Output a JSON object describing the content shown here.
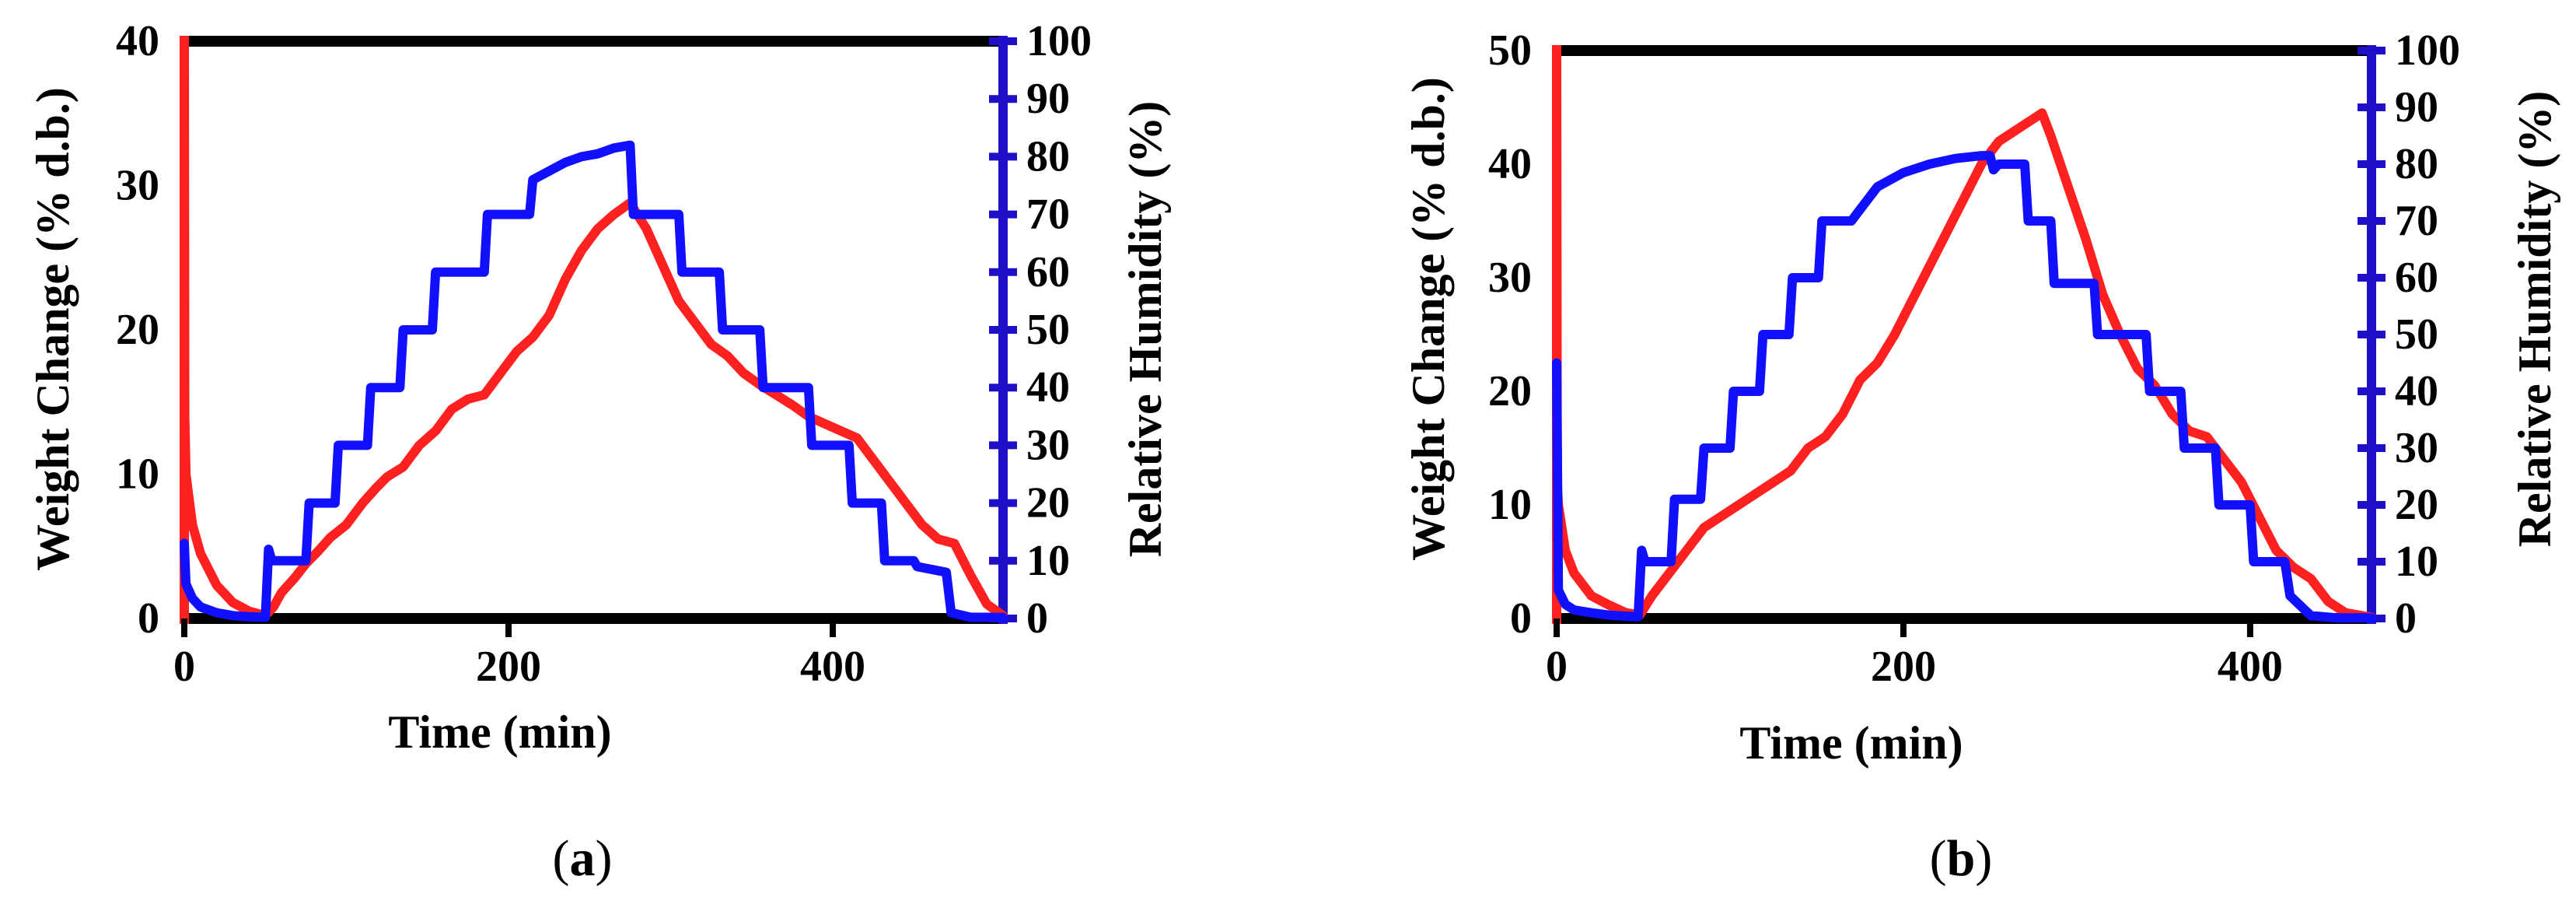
{
  "chart_data": [
    {
      "id": "a",
      "type": "line",
      "panel_label": "a",
      "xlabel": "Time (min)",
      "ylabel_left": "Weight Change (% d.b.)",
      "ylabel_right": "Relative Humidity (%)",
      "xlim": [
        0,
        505
      ],
      "xticks": [
        0,
        200,
        400
      ],
      "ylim_left": [
        0,
        40
      ],
      "yticks_left": [
        0,
        10,
        20,
        30,
        40
      ],
      "ylim_right": [
        0,
        100
      ],
      "yticks_right": [
        0,
        10,
        20,
        30,
        40,
        50,
        60,
        70,
        80,
        90,
        100
      ],
      "colors": {
        "left_axis": "#ff2020",
        "right_axis": "#1f10c8",
        "frame": "#000000"
      },
      "series": [
        {
          "name": "Weight Change",
          "axis": "left",
          "color": "#ff2020",
          "x": [
            0,
            0.3,
            1,
            5,
            10,
            20,
            30,
            40,
            50,
            55,
            60,
            68,
            75,
            82,
            90,
            100,
            110,
            118,
            125,
            135,
            145,
            155,
            165,
            175,
            185,
            195,
            205,
            215,
            225,
            235,
            245,
            255,
            265,
            275,
            285,
            295,
            305,
            315,
            325,
            335,
            345,
            355,
            365,
            375,
            385,
            395,
            405,
            415,
            425,
            435,
            445,
            455,
            465,
            475,
            485,
            495,
            505
          ],
          "y": [
            40,
            14,
            10,
            6.5,
            4.5,
            2.3,
            1.1,
            0.5,
            0.2,
            0.8,
            1.8,
            2.8,
            3.8,
            4.6,
            5.6,
            6.5,
            8.0,
            9.0,
            9.8,
            10.5,
            12.0,
            13.0,
            14.5,
            15.2,
            15.5,
            17.0,
            18.5,
            19.5,
            21.0,
            23.5,
            25.5,
            27.0,
            28.0,
            28.8,
            27.0,
            24.5,
            22.0,
            20.5,
            19.0,
            18.2,
            17.0,
            16.2,
            15.5,
            14.8,
            14.0,
            13.5,
            13.0,
            12.5,
            11.0,
            9.5,
            8.0,
            6.5,
            5.5,
            5.2,
            3.0,
            1.0,
            0.2
          ]
        },
        {
          "name": "Relative Humidity",
          "axis": "right",
          "color": "#1010ff",
          "x": [
            0,
            1,
            5,
            10,
            20,
            30,
            40,
            50,
            52,
            54,
            56,
            75,
            77,
            93,
            95,
            113,
            115,
            133,
            135,
            153,
            155,
            185,
            187,
            213,
            215,
            235,
            245,
            255,
            265,
            275,
            277,
            305,
            307,
            330,
            332,
            355,
            357,
            385,
            387,
            410,
            412,
            430,
            432,
            450,
            452,
            470,
            473,
            485,
            505
          ],
          "y": [
            13,
            6,
            3.5,
            2,
            1,
            0.5,
            0.3,
            0.2,
            12,
            10,
            10,
            10,
            20,
            20,
            30,
            30,
            40,
            40,
            50,
            50,
            60,
            60,
            70,
            70,
            76,
            79,
            80,
            80.5,
            81.5,
            82,
            70,
            70,
            60,
            60,
            50,
            50,
            40,
            40,
            30,
            30,
            20,
            20,
            10,
            10,
            9,
            8,
            1,
            0.2,
            0.2
          ]
        }
      ]
    },
    {
      "id": "b",
      "type": "line",
      "panel_label": "b",
      "xlabel": "Time (min)",
      "ylabel_left": "Weight Change (% d.b.)",
      "ylabel_right": "Relative Humidity (%)",
      "xlim": [
        0,
        470
      ],
      "xticks": [
        0,
        200,
        400
      ],
      "ylim_left": [
        0,
        50
      ],
      "yticks_left": [
        0,
        10,
        20,
        30,
        40,
        50
      ],
      "ylim_right": [
        0,
        100
      ],
      "yticks_right": [
        0,
        10,
        20,
        30,
        40,
        50,
        60,
        70,
        80,
        90,
        100
      ],
      "colors": {
        "left_axis": "#ff2020",
        "right_axis": "#1f10c8",
        "frame": "#000000"
      },
      "series": [
        {
          "name": "Weight Change",
          "axis": "left",
          "color": "#ff2020",
          "x": [
            0,
            0.3,
            1,
            5,
            10,
            20,
            30,
            40,
            48,
            55,
            65,
            75,
            85,
            95,
            105,
            115,
            125,
            135,
            145,
            155,
            165,
            175,
            185,
            195,
            205,
            215,
            225,
            235,
            245,
            255,
            265,
            270,
            275,
            280,
            285,
            295,
            305,
            315,
            325,
            335,
            345,
            355,
            365,
            375,
            385,
            395,
            405,
            415,
            425,
            435,
            445,
            455,
            470
          ],
          "y": [
            50,
            12,
            10,
            6,
            4,
            2,
            1.2,
            0.5,
            0.3,
            2.0,
            4.0,
            6.0,
            8.0,
            9.0,
            10.0,
            11.0,
            12.0,
            13.0,
            15.0,
            16.0,
            18.0,
            21.0,
            22.5,
            25.0,
            28.0,
            31.0,
            34.0,
            37.0,
            40.0,
            42.0,
            43.0,
            43.5,
            44.0,
            44.5,
            42.5,
            38.0,
            33.5,
            28.5,
            25.0,
            22.0,
            20.5,
            18.0,
            16.5,
            16.0,
            14.0,
            12.0,
            9.0,
            6.0,
            4.5,
            3.5,
            1.5,
            0.5,
            0.1
          ]
        },
        {
          "name": "Relative Humidity",
          "axis": "right",
          "color": "#1010ff",
          "x": [
            0,
            1,
            5,
            10,
            20,
            30,
            40,
            47,
            49,
            51,
            66,
            68,
            83,
            85,
            100,
            102,
            117,
            119,
            134,
            136,
            151,
            153,
            170,
            175,
            185,
            200,
            215,
            230,
            245,
            250,
            252,
            255,
            270,
            272,
            285,
            287,
            310,
            312,
            340,
            342,
            360,
            362,
            380,
            382,
            400,
            402,
            420,
            423,
            435,
            450,
            470
          ],
          "y": [
            45,
            5,
            2.5,
            1.5,
            1,
            0.6,
            0.4,
            0.3,
            12,
            10,
            10,
            21,
            21,
            30,
            30,
            40,
            40,
            50,
            50,
            60,
            60,
            70,
            70,
            72,
            76,
            78.5,
            80,
            81,
            81.5,
            81.5,
            79,
            80,
            80,
            70,
            70,
            59,
            59,
            50,
            50,
            40,
            40,
            30,
            30,
            20,
            20,
            10,
            10,
            4,
            0.5,
            0.1,
            0.1
          ]
        }
      ]
    }
  ]
}
